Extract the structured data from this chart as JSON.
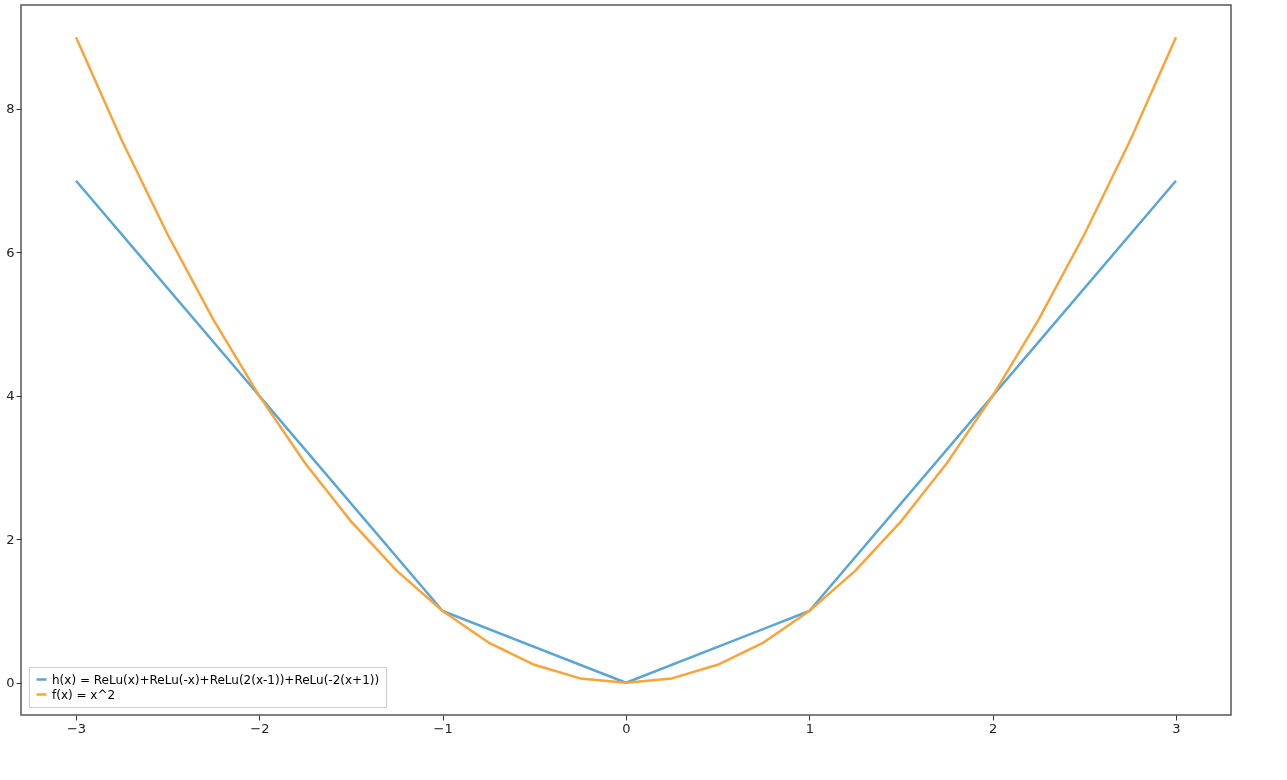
{
  "chart_data": {
    "type": "line",
    "xlim": [
      -3.3,
      3.3
    ],
    "ylim": [
      -0.45,
      9.45
    ],
    "xticks": [
      {
        "value": -3,
        "label": "−3"
      },
      {
        "value": -2,
        "label": "−2"
      },
      {
        "value": -1,
        "label": "−1"
      },
      0,
      1,
      2,
      3
    ],
    "yticks": [
      0,
      2,
      4,
      6,
      8
    ],
    "grid": false,
    "legend": "bottom left",
    "series": [
      {
        "name": "h(x) = ReLu(x)+ReLu(-x)+ReLu(2(x-1))+ReLu(-2(x+1))",
        "color": "#5aa5d5",
        "x": [
          -3,
          -2,
          -1,
          0,
          1,
          2,
          3
        ],
        "values": [
          7,
          4,
          1,
          0,
          1,
          4,
          7
        ]
      },
      {
        "name": "f(x) = x^2",
        "color": "#f9a43a",
        "x": [
          -3,
          -2.75,
          -2.5,
          -2.25,
          -2,
          -1.75,
          -1.5,
          -1.25,
          -1,
          -0.75,
          -0.5,
          -0.25,
          0,
          0.25,
          0.5,
          0.75,
          1,
          1.25,
          1.5,
          1.75,
          2,
          2.25,
          2.5,
          2.75,
          3
        ],
        "values": [
          9,
          7.56,
          6.25,
          5.06,
          4,
          3.06,
          2.25,
          1.56,
          1,
          0.56,
          0.25,
          0.06,
          0,
          0.06,
          0.25,
          0.56,
          1,
          1.56,
          2.25,
          3.06,
          4,
          5.06,
          6.25,
          7.56,
          9
        ]
      }
    ]
  }
}
